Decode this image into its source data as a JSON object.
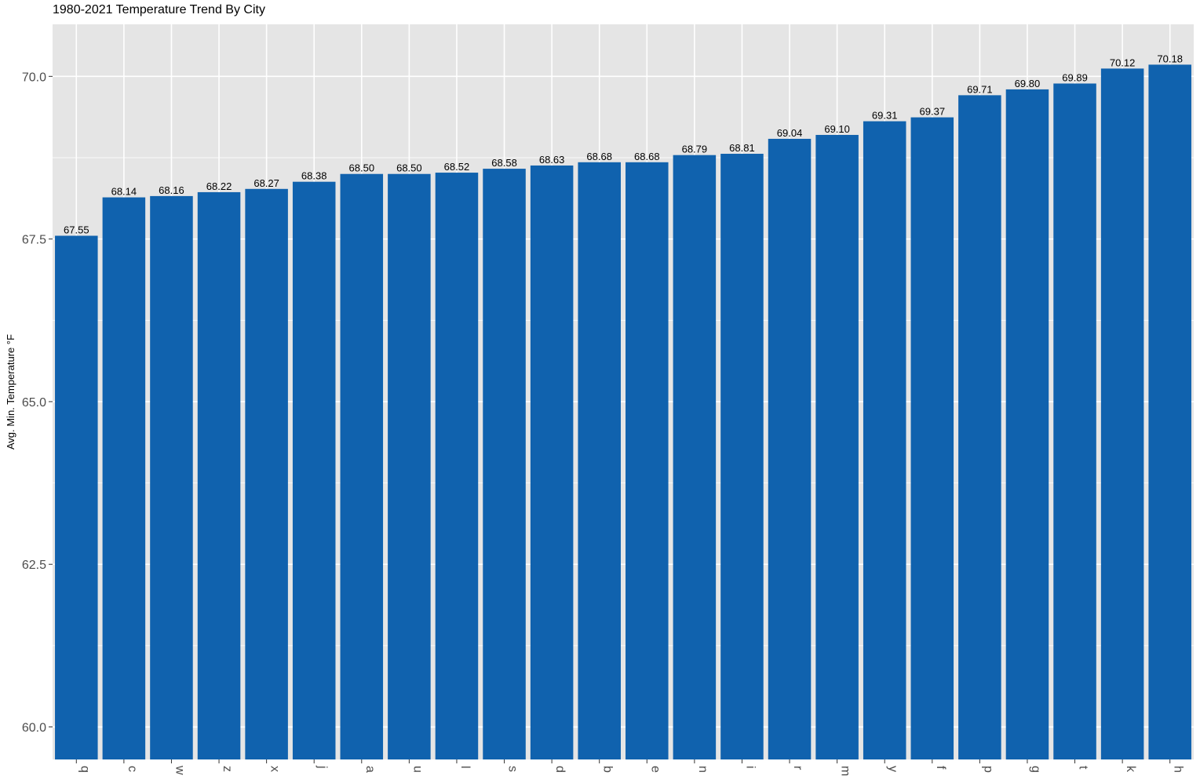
{
  "chart_data": {
    "type": "bar",
    "title": "1980-2021 Temperature Trend By City",
    "xlabel": "",
    "ylabel": "Avg. Min. Temperature °F",
    "ylim": [
      59.5,
      70.8
    ],
    "yticks": [
      60.0,
      62.5,
      65.0,
      67.5,
      70.0
    ],
    "ytick_labels": [
      "60.0",
      "62.5",
      "65.0",
      "67.5",
      "70.0"
    ],
    "categories": [
      "q",
      "c",
      "w",
      "z",
      "x",
      "j",
      "a",
      "u",
      "l",
      "s",
      "d",
      "b",
      "e",
      "n",
      "i",
      "r",
      "m",
      "y",
      "f",
      "p",
      "g",
      "t",
      "k",
      "h"
    ],
    "values": [
      67.55,
      68.14,
      68.16,
      68.22,
      68.27,
      68.38,
      68.5,
      68.5,
      68.52,
      68.58,
      68.63,
      68.68,
      68.68,
      68.79,
      68.81,
      69.04,
      69.1,
      69.31,
      69.37,
      69.71,
      69.8,
      69.89,
      70.12,
      70.18
    ],
    "value_labels": [
      "67.55",
      "68.14",
      "68.16",
      "68.22",
      "68.27",
      "68.38",
      "68.50",
      "68.50",
      "68.52",
      "68.58",
      "68.63",
      "68.68",
      "68.68",
      "68.79",
      "68.81",
      "69.04",
      "69.10",
      "69.31",
      "69.37",
      "69.71",
      "69.80",
      "69.89",
      "70.12",
      "70.18"
    ],
    "bar_color": "#1062AE",
    "panel_color": "#E5E5E5",
    "grid_color": "#FFFFFF",
    "grid": true,
    "legend": "none"
  }
}
